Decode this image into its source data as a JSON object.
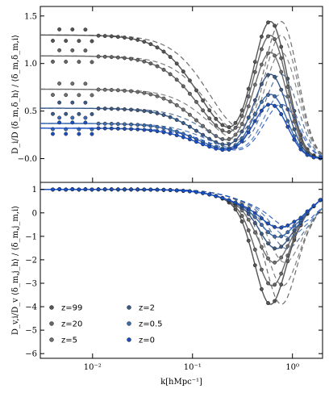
{
  "chart_data": [
    {
      "type": "line",
      "panel": "top",
      "ylabel": "D_i/D ⟨δ_m,δ_h⟩ / ⟨δ_m,δ_m,i⟩",
      "ylim": [
        -0.25,
        1.6
      ],
      "yticks": [
        {
          "v": -0.0,
          "label": "−0.0"
        },
        {
          "v": 0.5,
          "label": "0.5"
        },
        {
          "v": 1.0,
          "label": "1.0"
        },
        {
          "v": 1.5,
          "label": "1.5"
        }
      ],
      "series": [
        {
          "name": "z=99",
          "color": "#555555",
          "low": 1.3,
          "peak": 1.65,
          "peakk": 0.62
        },
        {
          "name": "z=20",
          "color": "#666666",
          "low": 1.08,
          "peak": 1.5,
          "peakk": 0.62
        },
        {
          "name": "z=5",
          "color": "#707070",
          "low": 0.73,
          "peak": 1.32,
          "peakk": 0.62
        },
        {
          "name": "z=2",
          "color": "#3a5a8a",
          "low": 0.53,
          "peak": 1.08,
          "peakk": 0.62
        },
        {
          "name": "z=0.5",
          "color": "#3b6bb0",
          "low": 0.37,
          "peak": 0.86,
          "peakk": 0.62
        },
        {
          "name": "z=0",
          "color": "#1a4fc0",
          "low": 0.32,
          "peak": 0.75,
          "peakk": 0.62
        }
      ]
    },
    {
      "type": "line",
      "panel": "bottom",
      "xlabel": "k[hMpc⁻¹]",
      "ylabel": "D_v,i/D_v ⟨δ_m,j_h⟩ / ⟨δ_m,j_m,i⟩",
      "xscale": "log",
      "xlim": [
        0.003,
        2.0
      ],
      "xticks": [
        {
          "v": 0.01,
          "label": "10⁻²"
        },
        {
          "v": 0.1,
          "label": "10⁻¹"
        },
        {
          "v": 1.0,
          "label": "10⁰"
        }
      ],
      "ylim": [
        -6.2,
        1.3
      ],
      "yticks": [
        {
          "v": 1,
          "label": "1"
        },
        {
          "v": 0,
          "label": "0"
        },
        {
          "v": -1,
          "label": "−1"
        },
        {
          "v": -2,
          "label": "−2"
        },
        {
          "v": -3,
          "label": "−3"
        },
        {
          "v": -4,
          "label": "−4"
        },
        {
          "v": -5,
          "label": "−5"
        },
        {
          "v": -6,
          "label": "−6"
        }
      ],
      "series": [
        {
          "name": "z=99",
          "color": "#555555",
          "min": -4.0,
          "mink": 0.6
        },
        {
          "name": "z=20",
          "color": "#666666",
          "min": -3.2,
          "mink": 0.62
        },
        {
          "name": "z=5",
          "color": "#707070",
          "min": -2.2,
          "mink": 0.65
        },
        {
          "name": "z=2",
          "color": "#3a5a8a",
          "min": -1.6,
          "mink": 0.68
        },
        {
          "name": "z=0.5",
          "color": "#3b6bb0",
          "min": -1.1,
          "mink": 0.7
        },
        {
          "name": "z=0",
          "color": "#1a4fc0",
          "min": -0.7,
          "mink": 0.72
        }
      ]
    }
  ],
  "legend": {
    "placement": "lower-left",
    "items": [
      "z=99",
      "z=20",
      "z=5",
      "z=2",
      "z=0.5",
      "z=0"
    ]
  }
}
